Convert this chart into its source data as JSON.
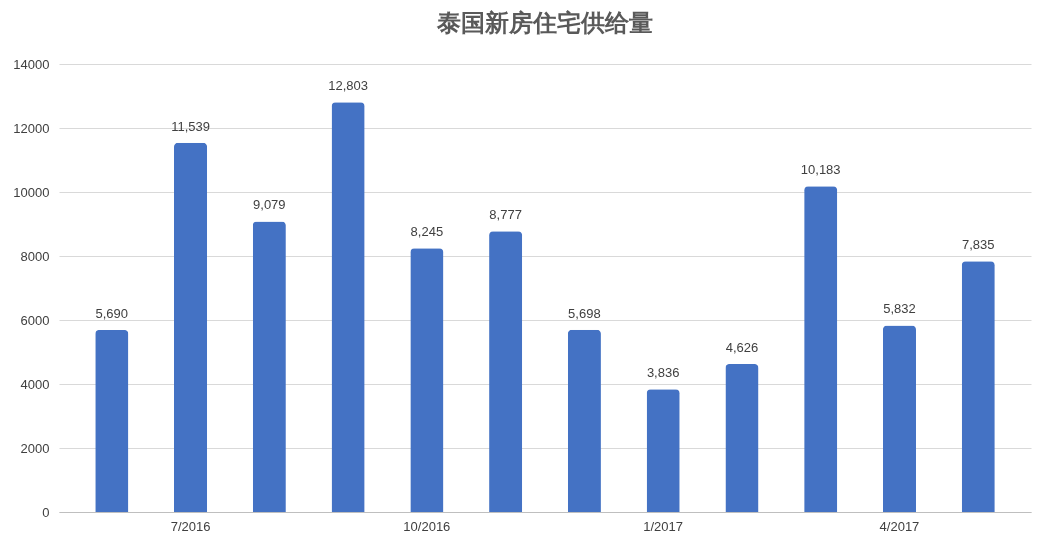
{
  "chart_data": {
    "type": "bar",
    "title": "泰国新房住宅供给量",
    "categories": [
      null,
      "7/2016",
      null,
      null,
      "10/2016",
      null,
      null,
      "1/2017",
      null,
      null,
      "4/2017",
      null
    ],
    "values": [
      5690,
      11539,
      9079,
      12803,
      8245,
      8777,
      5698,
      3836,
      4626,
      10183,
      5832,
      7835
    ],
    "value_labels": [
      "5,690",
      "11,539",
      "9,079",
      "12,803",
      "8,245",
      "8,777",
      "5,698",
      "3,836",
      "4,626",
      "10,183",
      "5,832",
      "7,835"
    ],
    "color": "#4472c4",
    "ylim": [
      0,
      14000
    ],
    "yticks": [
      0,
      2000,
      4000,
      6000,
      8000,
      10000,
      12000,
      14000
    ],
    "grid": "y"
  }
}
